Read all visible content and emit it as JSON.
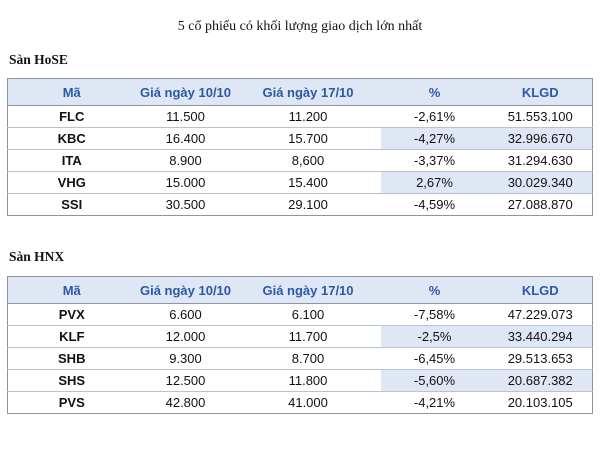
{
  "title": "5 cổ phiếu có khối lượng giao dịch lớn nhất",
  "colors": {
    "header_bg": "#dfe7f4",
    "header_text": "#2a5aa6",
    "negative": "#d63a2b",
    "positive": "#2f9b37"
  },
  "exchanges": [
    {
      "label": "Sàn HoSE",
      "headers": [
        "Mã",
        "Giá ngày 10/10",
        "Giá ngày 17/10",
        "%",
        "KLGD"
      ],
      "rows": [
        {
          "code": "FLC",
          "price_1010": "11.500",
          "price_1710": "11.200",
          "pct": "-2,61%",
          "volume": "51.553.100",
          "direction": "neg"
        },
        {
          "code": "KBC",
          "price_1010": "16.400",
          "price_1710": "15.700",
          "pct": "-4,27%",
          "volume": "32.996.670",
          "direction": "neg"
        },
        {
          "code": "ITA",
          "price_1010": "8.900",
          "price_1710": "8,600",
          "pct": "-3,37%",
          "volume": "31.294.630",
          "direction": "neg"
        },
        {
          "code": "VHG",
          "price_1010": "15.000",
          "price_1710": "15.400",
          "pct": "2,67%",
          "volume": "30.029.340",
          "direction": "pos"
        },
        {
          "code": "SSI",
          "price_1010": "30.500",
          "price_1710": "29.100",
          "pct": "-4,59%",
          "volume": "27.088.870",
          "direction": "neg"
        }
      ]
    },
    {
      "label": "Sàn HNX",
      "headers": [
        "Mã",
        "Giá ngày 10/10",
        "Giá ngày 17/10",
        "%",
        "KLGD"
      ],
      "rows": [
        {
          "code": "PVX",
          "price_1010": "6.600",
          "price_1710": "6.100",
          "pct": "-7,58%",
          "volume": "47.229.073",
          "direction": "neg"
        },
        {
          "code": "KLF",
          "price_1010": "12.000",
          "price_1710": "11.700",
          "pct": "-2,5%",
          "volume": "33.440.294",
          "direction": "neg"
        },
        {
          "code": "SHB",
          "price_1010": "9.300",
          "price_1710": "8.700",
          "pct": "-6,45%",
          "volume": "29.513.653",
          "direction": "neg"
        },
        {
          "code": "SHS",
          "price_1010": "12.500",
          "price_1710": "11.800",
          "pct": "-5,60%",
          "volume": "20.687.382",
          "direction": "neg"
        },
        {
          "code": "PVS",
          "price_1010": "42.800",
          "price_1710": "41.000",
          "pct": "-4,21%",
          "volume": "20.103.105",
          "direction": "neg"
        }
      ]
    }
  ]
}
